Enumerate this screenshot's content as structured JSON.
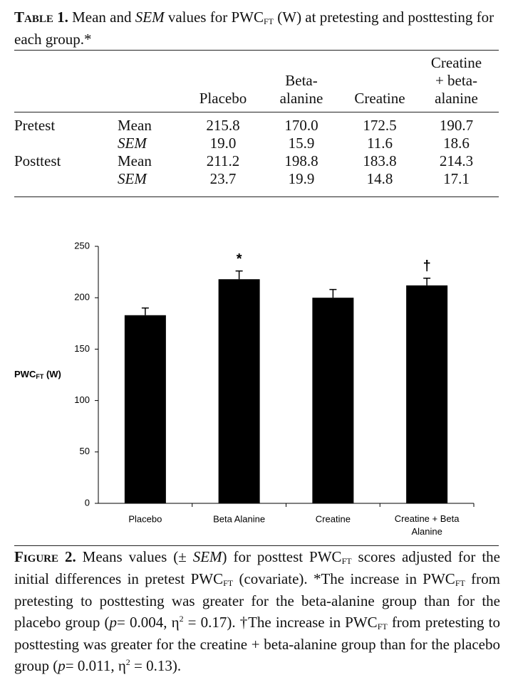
{
  "table": {
    "caption": [
      "Table 1.",
      " Mean and ",
      "SEM",
      " values for PWC",
      "FT",
      " (W) at pretesting and posttesting for each group.*"
    ],
    "columns": [
      [
        "Placebo"
      ],
      [
        "Beta-",
        "alanine"
      ],
      [
        "Creatine"
      ],
      [
        "Creatine",
        "+ beta-",
        "alanine"
      ]
    ],
    "rows": [
      [
        "Pretest",
        "Mean",
        "215.8",
        "170.0",
        "172.5",
        "190.7"
      ],
      [
        "",
        "SEM",
        "19.0",
        "15.9",
        "11.6",
        "18.6"
      ],
      [
        "Posttest",
        "Mean",
        "211.2",
        "198.8",
        "183.8",
        "214.3"
      ],
      [
        "",
        "SEM",
        "23.7",
        "19.9",
        "14.8",
        "17.1"
      ]
    ]
  },
  "chart_data": {
    "type": "bar",
    "y_label": [
      "PWC",
      "FT",
      " (W)"
    ],
    "categories": [
      "Placebo",
      "Beta Alanine",
      "Creatine",
      "Creatine + Beta Alanine"
    ],
    "values": [
      183,
      218,
      200,
      212
    ],
    "errors": [
      7,
      8,
      8,
      7
    ],
    "color": "#000000",
    "ylim": [
      0,
      250
    ],
    "yticks": [
      0,
      50,
      100,
      150,
      200,
      250
    ],
    "annotations": [
      {
        "text": "*",
        "category": "Beta Alanine"
      },
      {
        "text": "†",
        "category": "Creatine + Beta Alanine"
      }
    ]
  },
  "figure_caption": [
    "Figure 2.",
    " Means values (± ",
    "SEM",
    ") for posttest PWC",
    "FT",
    " scores adjusted for the initial differences in pretest PWC",
    "FT",
    " (covariate). *The increase in PWC",
    "FT",
    " from pretesting to posttesting was greater for the beta-alanine group than for the placebo group (",
    "p",
    "= 0.004, η",
    "2",
    " = 0.17). †The increase in PWC",
    "FT",
    " from pretesting to posttesting was greater for the creatine + beta-alanine group than for the placebo group (",
    "p",
    "= 0.011, η",
    "2",
    " = 0.13)."
  ]
}
